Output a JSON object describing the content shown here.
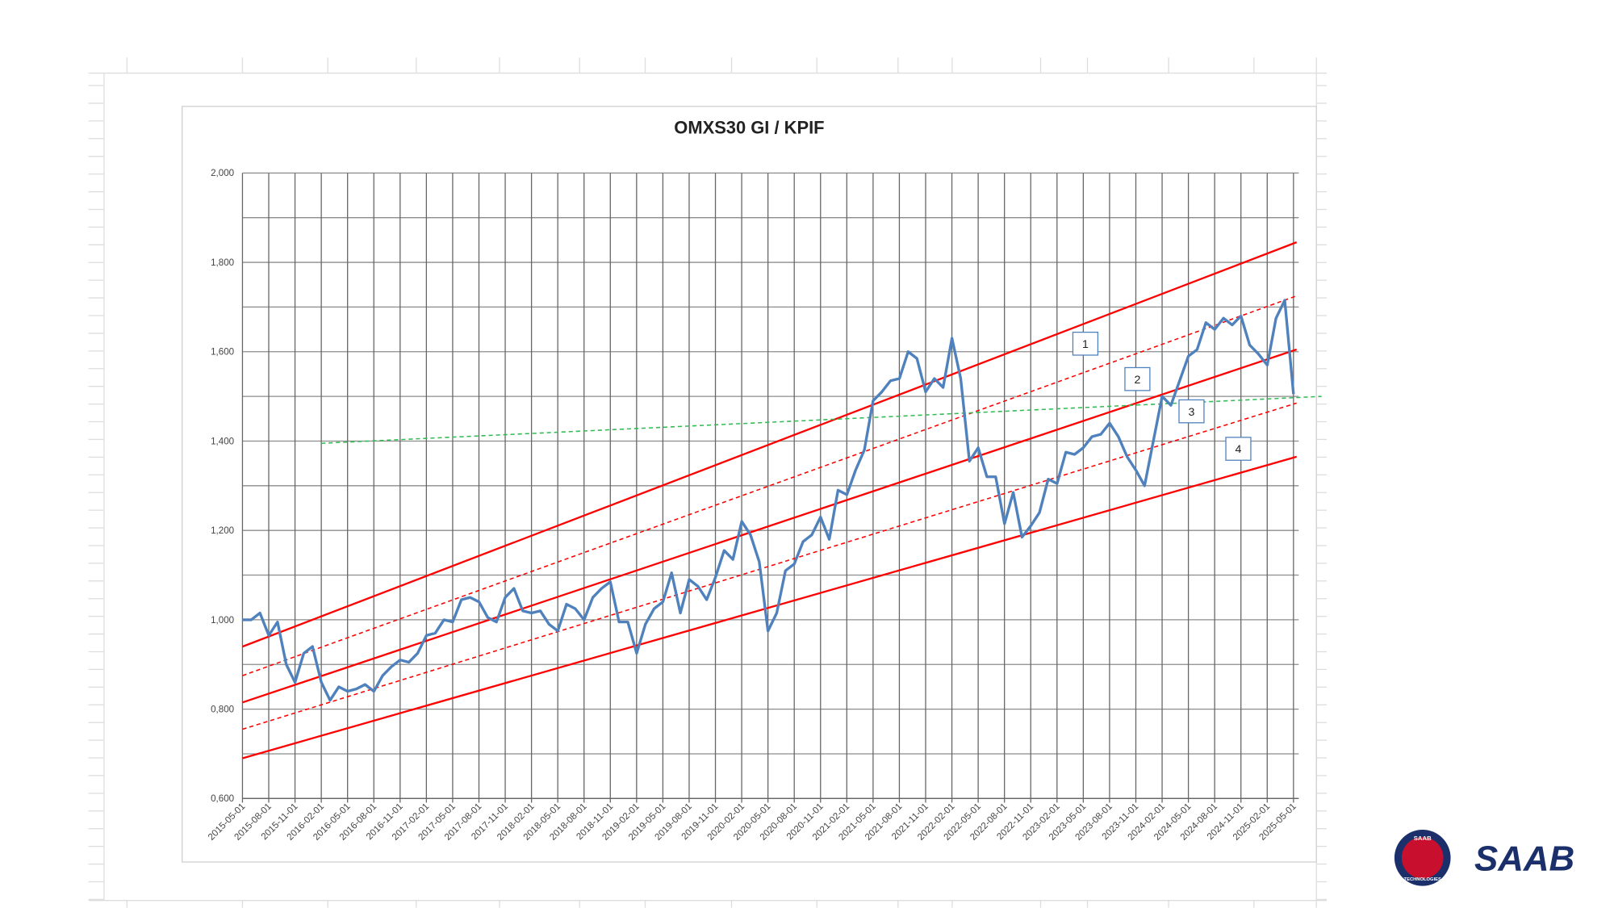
{
  "chart_data": {
    "type": "line",
    "title": "OMXS30 GI / KPIF",
    "categories": [
      "2015-05-01",
      null,
      null,
      "2015-08-01",
      null,
      null,
      "2015-11-01",
      null,
      null,
      "2016-02-01",
      null,
      null,
      "2016-05-01",
      null,
      null,
      "2016-08-01",
      null,
      null,
      "2016-11-01",
      null,
      null,
      "2017-02-01",
      null,
      null,
      "2017-05-01",
      null,
      null,
      "2017-08-01",
      null,
      null,
      "2017-11-01",
      null,
      null,
      "2018-02-01",
      null,
      null,
      "2018-05-01",
      null,
      null,
      "2018-08-01",
      null,
      null,
      "2018-11-01",
      null,
      null,
      "2019-02-01",
      null,
      null,
      "2019-05-01",
      null,
      null,
      "2019-08-01",
      null,
      null,
      "2019-11-01",
      null,
      null,
      "2020-02-01",
      null,
      null,
      "2020-05-01",
      null,
      null,
      "2020-08-01",
      null,
      null,
      "2020-11-01",
      null,
      null,
      "2021-02-01",
      null,
      null,
      "2021-05-01",
      null,
      null,
      "2021-08-01",
      null,
      null,
      "2021-11-01",
      null,
      null,
      "2022-02-01",
      null,
      null,
      "2022-05-01",
      null,
      null,
      "2022-08-01",
      null,
      null,
      "2022-11-01",
      null,
      null,
      "2023-02-01",
      null,
      null,
      "2023-05-01",
      null,
      null,
      "2023-08-01",
      null,
      null,
      "2023-11-01",
      null,
      null,
      "2024-02-01",
      null,
      null,
      "2024-05-01",
      null,
      null,
      "2024-08-01",
      null,
      null,
      "2024-11-01",
      null,
      null,
      "2025-02-01",
      null,
      null,
      "2025-05-01"
    ],
    "series": [
      {
        "color": "#4f81bd",
        "values": [
          1.0,
          1.0,
          1.015,
          0.965,
          0.995,
          0.9,
          0.86,
          0.925,
          0.94,
          0.86,
          0.82,
          0.85,
          0.84,
          0.845,
          0.855,
          0.84,
          0.875,
          0.895,
          0.91,
          0.905,
          0.925,
          0.965,
          0.97,
          1.0,
          0.995,
          1.045,
          1.05,
          1.04,
          1.005,
          0.995,
          1.05,
          1.07,
          1.02,
          1.015,
          1.02,
          0.99,
          0.975,
          1.035,
          1.025,
          1.0,
          1.05,
          1.07,
          1.085,
          0.995,
          0.995,
          0.925,
          0.99,
          1.025,
          1.04,
          1.105,
          1.015,
          1.09,
          1.075,
          1.045,
          1.095,
          1.155,
          1.135,
          1.22,
          1.19,
          1.13,
          0.975,
          1.015,
          1.11,
          1.125,
          1.175,
          1.19,
          1.23,
          1.18,
          1.29,
          1.28,
          1.335,
          1.38,
          1.49,
          1.51,
          1.535,
          1.54,
          1.6,
          1.585,
          1.51,
          1.54,
          1.52,
          1.63,
          1.54,
          1.355,
          1.385,
          1.32,
          1.32,
          1.215,
          1.285,
          1.185,
          1.21,
          1.24,
          1.315,
          1.305,
          1.375,
          1.37,
          1.385,
          1.41,
          1.415,
          1.44,
          1.41,
          1.365,
          1.335,
          1.3,
          1.4,
          1.5,
          1.48,
          1.535,
          1.59,
          1.605,
          1.665,
          1.65,
          1.675,
          1.66,
          1.68,
          1.615,
          1.595,
          1.57,
          1.675,
          1.715,
          1.505
        ]
      }
    ],
    "trend_lines": [
      {
        "color": "#ff0000",
        "style": "solid",
        "start": 0.94,
        "end": 1.845
      },
      {
        "color": "#ff0000",
        "style": "dashed",
        "start": 0.875,
        "end": 1.725
      },
      {
        "color": "#ff0000",
        "style": "solid",
        "start": 0.815,
        "end": 1.605
      },
      {
        "color": "#ff0000",
        "style": "dashed",
        "start": 0.755,
        "end": 1.485
      },
      {
        "color": "#ff0000",
        "style": "solid",
        "start": 0.69,
        "end": 1.365
      },
      {
        "color": "#33bb55",
        "style": "dashed",
        "from": "2016-02-01",
        "start": 1.395,
        "end": 1.5
      }
    ],
    "annotations": [
      "1",
      "2",
      "3",
      "4"
    ],
    "ylim": [
      0.6,
      2.0
    ],
    "yticks": [
      {
        "value": 0.6,
        "label": "0,600"
      },
      {
        "value": 0.8,
        "label": "0,800"
      },
      {
        "value": 1.0,
        "label": "1,000"
      },
      {
        "value": 1.2,
        "label": "1,200"
      },
      {
        "value": 1.4,
        "label": "1,400"
      },
      {
        "value": 1.6,
        "label": "1,600"
      },
      {
        "value": 1.8,
        "label": "1,800"
      },
      {
        "value": 2.0,
        "label": "2,000"
      }
    ],
    "minor_yticks": [
      0.7,
      0.9,
      1.1,
      1.3,
      1.5,
      1.7,
      1.9
    ],
    "grid": true
  },
  "logo": {
    "wordmark": "SAAB",
    "badge_top": "SAAB",
    "badge_bottom": "TECHNOLOGIES"
  }
}
